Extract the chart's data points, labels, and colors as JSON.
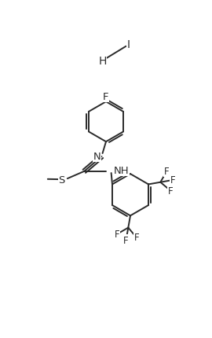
{
  "bg_color": "#ffffff",
  "line_color": "#2a2a2a",
  "text_color": "#2a2a2a",
  "lw": 1.4,
  "fs": 9.5,
  "figsize": [
    2.7,
    4.31
  ],
  "dpi": 100,
  "xlim": [
    -1,
    11
  ],
  "ylim": [
    0,
    17
  ]
}
